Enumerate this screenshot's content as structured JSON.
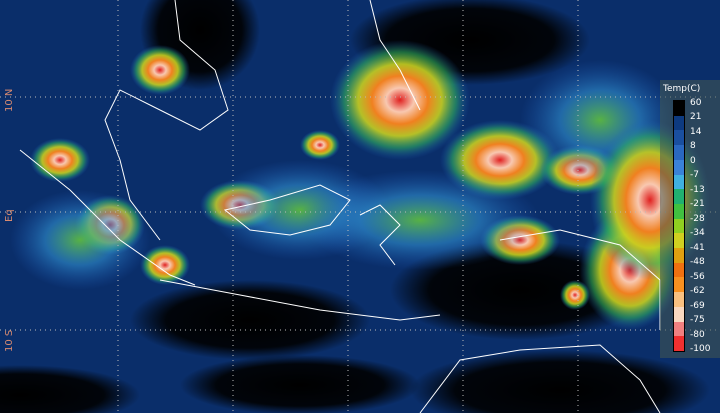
{
  "map": {
    "latitude_labels": [
      "10 N",
      "Eq",
      "10 S"
    ]
  },
  "legend": {
    "title": "Temp(C)",
    "ticks": [
      "60",
      "21",
      "14",
      "8",
      "0",
      "-7",
      "-13",
      "-21",
      "-28",
      "-34",
      "-41",
      "-48",
      "-56",
      "-62",
      "-69",
      "-75",
      "-80",
      "-100"
    ],
    "colors": [
      "#000000",
      "#0d3a80",
      "#1a4fa0",
      "#2a68c0",
      "#3a82d8",
      "#40b0e0",
      "#20b070",
      "#40c040",
      "#90d020",
      "#d0d020",
      "#e0a010",
      "#f07010",
      "#f89020",
      "#f8c080",
      "#f8d8c0",
      "#f08080",
      "#f03030",
      "#e00000"
    ]
  }
}
